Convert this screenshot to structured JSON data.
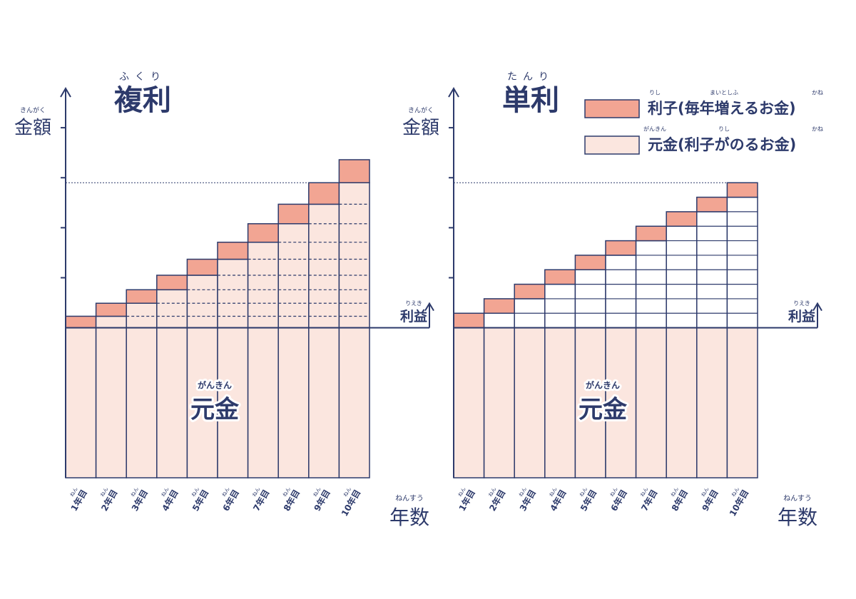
{
  "chart_data": [
    {
      "type": "bar",
      "stacked": true,
      "title": "複利",
      "title_ruby": "ふくり",
      "ylabel": "金額",
      "ylabel_ruby": "きんがく",
      "xlabel": "年数",
      "xlabel_ruby": "ねんすう",
      "axis2_label": "利益",
      "axis2_ruby": "りえき",
      "center_label": "元金",
      "center_ruby": "がんきん",
      "categories": [
        "1年目",
        "2年目",
        "3年目",
        "4年目",
        "5年目",
        "6年目",
        "7年目",
        "8年目",
        "9年目",
        "10年目"
      ],
      "category_ruby": "ねん",
      "stripe_style": "dashed",
      "ylim": [
        0,
        7.7
      ],
      "yticks": [
        4,
        5,
        6,
        7
      ],
      "series": [
        {
          "color": "#fbe6df",
          "values": [
            3,
            3,
            3,
            3,
            3,
            3,
            3,
            3,
            3,
            3
          ]
        },
        {
          "color": "#fbe6df",
          "values": [
            0,
            0.23,
            0.49,
            0.76,
            1.05,
            1.37,
            1.71,
            2.08,
            2.47,
            2.9
          ]
        },
        {
          "color": "#f2a593",
          "values": [
            0.23,
            0.26,
            0.27,
            0.29,
            0.32,
            0.34,
            0.37,
            0.39,
            0.43,
            0.46
          ]
        }
      ]
    },
    {
      "type": "bar",
      "stacked": true,
      "title": "単利",
      "title_ruby": "たんり",
      "ylabel": "金額",
      "ylabel_ruby": "きんがく",
      "xlabel": "年数",
      "xlabel_ruby": "ねんすう",
      "axis2_label": "利益",
      "axis2_ruby": "りえき",
      "center_label": "元金",
      "center_ruby": "がんきん",
      "categories": [
        "1年目",
        "2年目",
        "3年目",
        "4年目",
        "5年目",
        "6年目",
        "7年目",
        "8年目",
        "9年目",
        "10年目"
      ],
      "category_ruby": "ねん",
      "stripe_style": "solid",
      "legend": "upper right",
      "ylim": [
        0,
        7.7
      ],
      "yticks": [
        4,
        5,
        6,
        7
      ],
      "series": [
        {
          "name": "元金(利子がのるお金)",
          "name_ruby": [
            "がんきん",
            "りし",
            "かね"
          ],
          "color": "#fbe6df",
          "values": [
            3,
            3,
            3,
            3,
            3,
            3,
            3,
            3,
            3,
            3
          ]
        },
        {
          "color": "#ffffff",
          "values": [
            0,
            0.29,
            0.58,
            0.87,
            1.16,
            1.45,
            1.74,
            2.03,
            2.32,
            2.61
          ]
        },
        {
          "name": "利子(毎年増えるお金)",
          "name_ruby": [
            "りし",
            "まいとしふ",
            "かね"
          ],
          "color": "#f2a593",
          "values": [
            0.29,
            0.29,
            0.29,
            0.29,
            0.29,
            0.29,
            0.29,
            0.29,
            0.29,
            0.29
          ]
        }
      ]
    }
  ]
}
